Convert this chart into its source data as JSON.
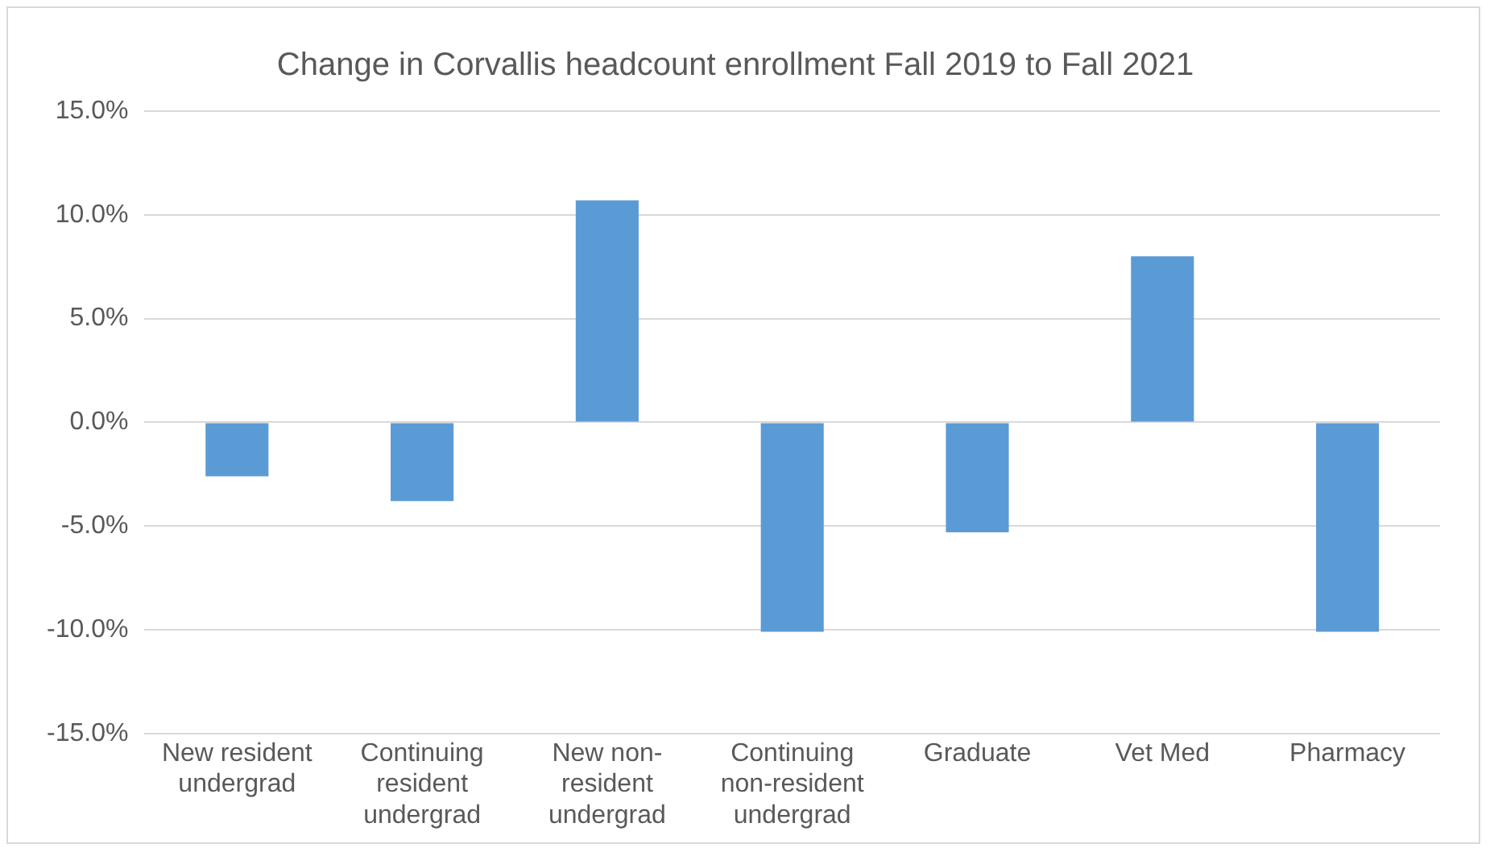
{
  "chart_data": {
    "type": "bar",
    "title": "Change in Corvallis headcount enrollment Fall 2019 to Fall 2021",
    "categories": [
      "New resident undergrad",
      "Continuing resident undergrad",
      "New non-resident undergrad",
      "Continuing non-resident undergrad",
      "Graduate",
      "Vet Med",
      "Pharmacy"
    ],
    "values": [
      -2.6,
      -3.8,
      10.7,
      -10.1,
      -5.3,
      8.0,
      -10.1
    ],
    "color": "#5b9bd5",
    "ylim": [
      -15,
      15
    ],
    "yticks": [
      {
        "value": -15,
        "label": "-15.0%"
      },
      {
        "value": -10,
        "label": "-10.0%"
      },
      {
        "value": -5,
        "label": "-5.0%"
      },
      {
        "value": 0,
        "label": "0.0%"
      },
      {
        "value": 5,
        "label": "5.0%"
      },
      {
        "value": 10,
        "label": "10.0%"
      },
      {
        "value": 15,
        "label": "15.0%"
      }
    ],
    "grid": "y",
    "legend": false
  }
}
